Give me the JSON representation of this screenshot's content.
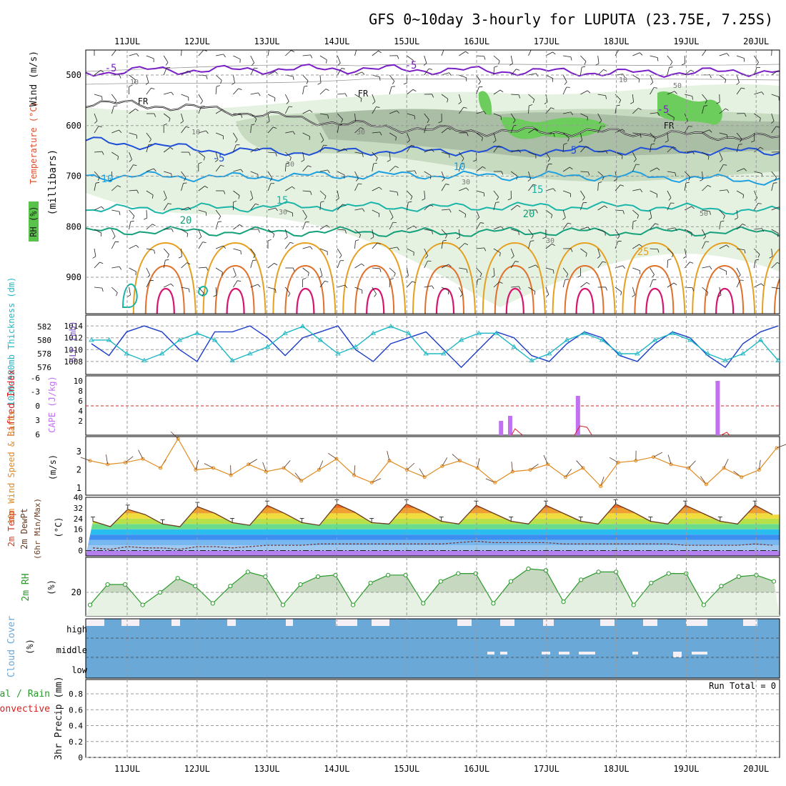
{
  "title": "GFS 0~10day 3-hourly for LUPUTA (23.75E, 7.25S)",
  "days": [
    "11JUL",
    "12JUL",
    "13JUL",
    "14JUL",
    "15JUL",
    "16JUL",
    "17JUL",
    "18JUL",
    "19JUL",
    "20JUL"
  ],
  "colors": {
    "purple": "#7a1fc8",
    "blue_dark": "#1e4fd8",
    "blue_mid": "#1d9fe0",
    "teal": "#1ab5a8",
    "green_cont": "#13a07a",
    "orange": "#e6a020",
    "orange_dark": "#e0702a",
    "magenta": "#d6166e",
    "rh_light": "#e6f2e1",
    "rh_mid": "#c7dbc1",
    "rh_dark": "#aabda5",
    "rh_green": "#6ccd5c",
    "slp": "#1a3cc8",
    "thick": "#20b8c4",
    "cape": "#c070f0",
    "li": "#d82020",
    "wind10": "#e08a20",
    "rh2m": "#2a9a2a",
    "cloud": "#6aa8d8",
    "cloud_gap": "#f4f0f6"
  },
  "panels": {
    "upper": {
      "ylabel_rh": "RH (%)",
      "ylabel_temp": "Temperature (°C)",
      "ylabel_wind": "Wind (m/s)",
      "ylabel_p": "(millibars)",
      "yticks": [
        "500",
        "600",
        "700",
        "800",
        "900"
      ],
      "contour_labels": [
        "-5",
        "-5",
        "-5",
        "-5",
        "5",
        "10",
        "10",
        "15",
        "15",
        "20",
        "20",
        "25"
      ],
      "freeze_label": "FR",
      "rh_labels": [
        "10",
        "10",
        "10",
        "30",
        "30",
        "30",
        "30",
        "30",
        "50",
        "50"
      ]
    },
    "thickness": {
      "ylabel_left": "1000-500mb Thickness (dm)",
      "ylabel_right": "SLP (mb)",
      "yticks_left": [
        "576",
        "578",
        "580",
        "582"
      ],
      "yticks_right": [
        "1008",
        "1010",
        "1012",
        "1014"
      ]
    },
    "cape": {
      "ylabel_left": "Lifted Index",
      "ylabel_right": "CAPE (J/kg)",
      "yticks_left": [
        "-6",
        "-3",
        "0",
        "3",
        "6"
      ],
      "yticks_right": [
        "10",
        "8",
        "6",
        "4",
        "2"
      ]
    },
    "wind10": {
      "ylabel": "10m Wind Speed & Barbs",
      "unit": "(m/s)",
      "yticks": [
        "1",
        "2",
        "3"
      ]
    },
    "temp2m": {
      "ylabel1": "2m Temp",
      "ylabel2": "2m DewPt",
      "ylabel3": "(6hr Min/Max)",
      "unit": "(°C)",
      "yticks": [
        "0",
        "8",
        "16",
        "24",
        "32",
        "40"
      ]
    },
    "rh2m": {
      "ylabel": "2m RH",
      "unit": "(%)",
      "yticks": [
        "20"
      ]
    },
    "cloud": {
      "ylabel": "Cloud Cover",
      "unit": "(%)",
      "levels": [
        "high",
        "middle",
        "low"
      ]
    },
    "precip": {
      "ylabel1": "Total / Rain",
      "ylabel2": "Convective",
      "ylabel3": "3hr Precip (mm)",
      "yticks": [
        "0",
        "0.2",
        "0.4",
        "0.6",
        "0.8"
      ],
      "run_total": "Run Total = 0"
    }
  },
  "chart_data": [
    {
      "type": "line",
      "name": "upper-air",
      "ylabel": "millibars",
      "ylim": [
        1000,
        450
      ],
      "x": [
        "11JUL",
        "12JUL",
        "13JUL",
        "14JUL",
        "15JUL",
        "16JUL",
        "17JUL",
        "18JUL",
        "19JUL",
        "20JUL"
      ],
      "series": [
        {
          "name": "-5",
          "values": [
            495,
            490,
            490,
            488,
            488,
            490,
            492,
            494,
            496,
            494
          ]
        },
        {
          "name": "FR",
          "values": [
            555,
            560,
            570,
            585,
            600,
            608,
            612,
            612,
            615,
            620
          ]
        },
        {
          "name": "-5",
          "values": [
            630,
            640,
            650,
            652,
            650,
            650,
            650,
            650,
            648,
            650
          ]
        },
        {
          "name": "10",
          "values": [
            700,
            700,
            702,
            700,
            698,
            698,
            700,
            700,
            700,
            705
          ]
        },
        {
          "name": "15",
          "values": [
            765,
            765,
            762,
            760,
            760,
            762,
            760,
            760,
            760,
            765
          ]
        },
        {
          "name": "20",
          "values": [
            810,
            808,
            810,
            810,
            810,
            812,
            810,
            810,
            810,
            810
          ]
        }
      ]
    },
    {
      "type": "line",
      "name": "thickness-slp",
      "ylim": [
        1007,
        1015
      ],
      "x": [
        0,
        0.25,
        0.5,
        0.75,
        1,
        1.25,
        1.5,
        1.75,
        2,
        2.25,
        2.5,
        2.75,
        3,
        3.25,
        3.5,
        3.75,
        4,
        4.25,
        4.5,
        4.75,
        5,
        5.25,
        5.5,
        5.75,
        6,
        6.25,
        6.5,
        6.75,
        7,
        7.25,
        7.5,
        7.75,
        8,
        8.25,
        8.5,
        8.75,
        9,
        9.25,
        9.5,
        9.75
      ],
      "series": [
        {
          "name": "SLP (mb)",
          "values": [
            1011,
            1009,
            1013,
            1014,
            1013,
            1010,
            1008,
            1013,
            1013,
            1014,
            1012,
            1009,
            1012,
            1013,
            1014,
            1010,
            1008,
            1011,
            1012,
            1013,
            1010,
            1007,
            1010,
            1013,
            1012,
            1009,
            1008,
            1011,
            1013,
            1012,
            1009,
            1008,
            1011,
            1013,
            1012,
            1009,
            1007,
            1011,
            1013,
            1014
          ]
        },
        {
          "name": "1000-500mb Thickness (dm)",
          "values": [
            580,
            580,
            578,
            577,
            578,
            580,
            581,
            580,
            577,
            578,
            579,
            581,
            582,
            580,
            578,
            579,
            581,
            582,
            581,
            578,
            578,
            580,
            581,
            581,
            579,
            577,
            578,
            580,
            581,
            580,
            578,
            578,
            580,
            581,
            580,
            578,
            577,
            578,
            580,
            577
          ]
        }
      ]
    },
    {
      "type": "bar",
      "name": "cape",
      "ylim": [
        0,
        11
      ],
      "categories": [
        "16JUL-09",
        "16JUL-12",
        "17JUL-12",
        "19JUL-12"
      ],
      "series": [
        {
          "name": "CAPE (J/kg)",
          "values": [
            2,
            3,
            7,
            10
          ]
        }
      ]
    },
    {
      "type": "line",
      "name": "wind10m",
      "ylim": [
        0.6,
        3.9
      ],
      "x": [
        0,
        0.25,
        0.5,
        0.75,
        1,
        1.25,
        1.5,
        1.75,
        2,
        2.25,
        2.5,
        2.75,
        3,
        3.25,
        3.5,
        3.75,
        4,
        4.25,
        4.5,
        4.75,
        5,
        5.25,
        5.5,
        5.75,
        6,
        6.25,
        6.5,
        6.75,
        7,
        7.25,
        7.5,
        7.75,
        8,
        8.25,
        8.5,
        8.75,
        9,
        9.25,
        9.5,
        9.75
      ],
      "series": [
        {
          "name": "10m Wind Speed",
          "values": [
            2.5,
            2.3,
            2.4,
            2.6,
            2.1,
            3.7,
            2.0,
            2.1,
            1.7,
            2.3,
            1.9,
            2.1,
            1.4,
            2.0,
            2.6,
            1.7,
            1.3,
            2.5,
            2.0,
            1.6,
            2.2,
            2.5,
            2.1,
            1.3,
            1.9,
            2.0,
            2.3,
            1.6,
            2.1,
            1.1,
            2.4,
            2.5,
            2.7,
            2.3,
            2.1,
            1.2,
            2.1,
            1.6,
            2.0,
            3.2
          ]
        }
      ]
    },
    {
      "type": "area",
      "name": "temp2m",
      "ylim": [
        -4,
        40
      ],
      "x": [
        0,
        0.25,
        0.5,
        0.75,
        1,
        1.25,
        1.5,
        1.75,
        2,
        2.25,
        2.5,
        2.75,
        3,
        3.25,
        3.5,
        3.75,
        4,
        4.25,
        4.5,
        4.75,
        5,
        5.25,
        5.5,
        5.75,
        6,
        6.25,
        6.5,
        6.75,
        7,
        7.25,
        7.5,
        7.75,
        8,
        8.25,
        8.5,
        8.75,
        9,
        9.25,
        9.5,
        9.75
      ],
      "series": [
        {
          "name": "2m Temp",
          "values": [
            22,
            18,
            31,
            27,
            20,
            18,
            33,
            28,
            21,
            19,
            34,
            28,
            21,
            19,
            35,
            29,
            21,
            20,
            35,
            29,
            22,
            20,
            34,
            28,
            22,
            20,
            34,
            28,
            22,
            20,
            35,
            29,
            22,
            20,
            34,
            28,
            22,
            20,
            34,
            27
          ]
        },
        {
          "name": "2m DewPt",
          "values": [
            2,
            1,
            3,
            2,
            2,
            1,
            3,
            3,
            2,
            3,
            4,
            4,
            4,
            5,
            5,
            5,
            5,
            5,
            5,
            5,
            5,
            6,
            7,
            6,
            6,
            6,
            6,
            5,
            5,
            5,
            5,
            5,
            5,
            5,
            4,
            4,
            4,
            4,
            5,
            4
          ]
        }
      ]
    },
    {
      "type": "line",
      "name": "rh2m",
      "ylim": [
        5,
        40
      ],
      "x": [
        0,
        0.25,
        0.5,
        0.75,
        1,
        1.25,
        1.5,
        1.75,
        2,
        2.25,
        2.5,
        2.75,
        3,
        3.25,
        3.5,
        3.75,
        4,
        4.25,
        4.5,
        4.75,
        5,
        5.25,
        5.5,
        5.75,
        6,
        6.25,
        6.5,
        6.75,
        7,
        7.25,
        7.5,
        7.75,
        8,
        8.25,
        8.5,
        8.75,
        9,
        9.25,
        9.5,
        9.75
      ],
      "series": [
        {
          "name": "2m RH",
          "values": [
            12,
            25,
            25,
            12,
            20,
            29,
            24,
            13,
            24,
            33,
            30,
            12,
            25,
            30,
            31,
            12,
            26,
            31,
            31,
            13,
            27,
            32,
            32,
            13,
            27,
            35,
            34,
            14,
            28,
            33,
            33,
            12,
            26,
            32,
            32,
            12,
            24,
            30,
            31,
            27
          ]
        }
      ]
    },
    {
      "type": "bar",
      "name": "precip3hr",
      "ylim": [
        0,
        1
      ],
      "categories": [],
      "series": [
        {
          "name": "Total / Rain",
          "values": []
        },
        {
          "name": "Convective",
          "values": []
        }
      ]
    }
  ]
}
